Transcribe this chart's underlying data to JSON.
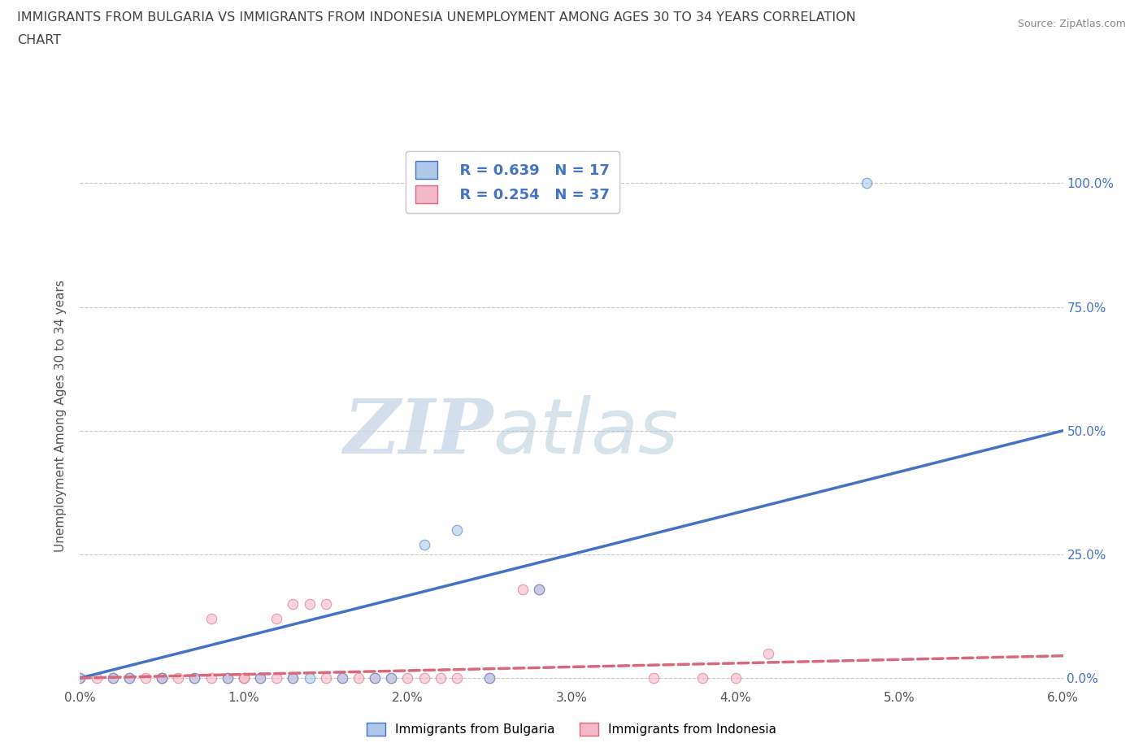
{
  "title_line1": "IMMIGRANTS FROM BULGARIA VS IMMIGRANTS FROM INDONESIA UNEMPLOYMENT AMONG AGES 30 TO 34 YEARS CORRELATION",
  "title_line2": "CHART",
  "source_text": "Source: ZipAtlas.com",
  "ylabel": "Unemployment Among Ages 30 to 34 years",
  "xlim": [
    0.0,
    0.06
  ],
  "ylim": [
    -0.02,
    1.08
  ],
  "xticks": [
    0.0,
    0.01,
    0.02,
    0.03,
    0.04,
    0.05,
    0.06
  ],
  "yticks": [
    0.0,
    0.25,
    0.5,
    0.75,
    1.0
  ],
  "xticklabels": [
    "0.0%",
    "1.0%",
    "2.0%",
    "3.0%",
    "4.0%",
    "5.0%",
    "6.0%"
  ],
  "yticklabels": [
    "0.0%",
    "25.0%",
    "50.0%",
    "75.0%",
    "100.0%"
  ],
  "bulgaria_color": "#adc8e8",
  "indonesia_color": "#f5b8c8",
  "bulgaria_line_color": "#4472c4",
  "indonesia_line_color": "#d9687a",
  "watermark_zip": "ZIP",
  "watermark_atlas": "atlas",
  "legend_r_bulgaria": "R = 0.639",
  "legend_n_bulgaria": "N = 17",
  "legend_r_indonesia": "R = 0.254",
  "legend_n_indonesia": "N = 37",
  "legend_label_bulgaria": "Immigrants from Bulgaria",
  "legend_label_indonesia": "Immigrants from Indonesia",
  "bulgaria_x": [
    0.0,
    0.002,
    0.003,
    0.005,
    0.007,
    0.009,
    0.011,
    0.013,
    0.014,
    0.016,
    0.018,
    0.019,
    0.021,
    0.023,
    0.025,
    0.028,
    0.048
  ],
  "bulgaria_y": [
    0.0,
    0.0,
    0.0,
    0.0,
    0.0,
    0.0,
    0.0,
    0.0,
    0.0,
    0.0,
    0.0,
    0.0,
    0.27,
    0.3,
    0.0,
    0.18,
    1.0
  ],
  "indonesia_x": [
    0.0,
    0.001,
    0.002,
    0.003,
    0.004,
    0.005,
    0.005,
    0.006,
    0.007,
    0.008,
    0.008,
    0.009,
    0.01,
    0.01,
    0.011,
    0.012,
    0.012,
    0.013,
    0.013,
    0.014,
    0.015,
    0.015,
    0.016,
    0.017,
    0.018,
    0.019,
    0.02,
    0.021,
    0.022,
    0.023,
    0.025,
    0.027,
    0.028,
    0.035,
    0.038,
    0.04,
    0.042
  ],
  "indonesia_y": [
    0.0,
    0.0,
    0.0,
    0.0,
    0.0,
    0.0,
    0.0,
    0.0,
    0.0,
    0.0,
    0.12,
    0.0,
    0.0,
    0.0,
    0.0,
    0.0,
    0.12,
    0.0,
    0.15,
    0.15,
    0.0,
    0.15,
    0.0,
    0.0,
    0.0,
    0.0,
    0.0,
    0.0,
    0.0,
    0.0,
    0.0,
    0.18,
    0.18,
    0.0,
    0.0,
    0.0,
    0.05
  ],
  "bg_color": "#ffffff",
  "grid_color": "#c8c8c8",
  "font_color_title": "#404040",
  "marker_size": 9,
  "marker_alpha": 0.6,
  "line_width": 2.5,
  "bulgaria_regline_x": [
    0.0,
    0.06
  ],
  "bulgaria_regline_y": [
    0.0,
    0.5
  ],
  "indonesia_regline_x": [
    0.0,
    0.06
  ],
  "indonesia_regline_y": [
    0.0,
    0.045
  ]
}
